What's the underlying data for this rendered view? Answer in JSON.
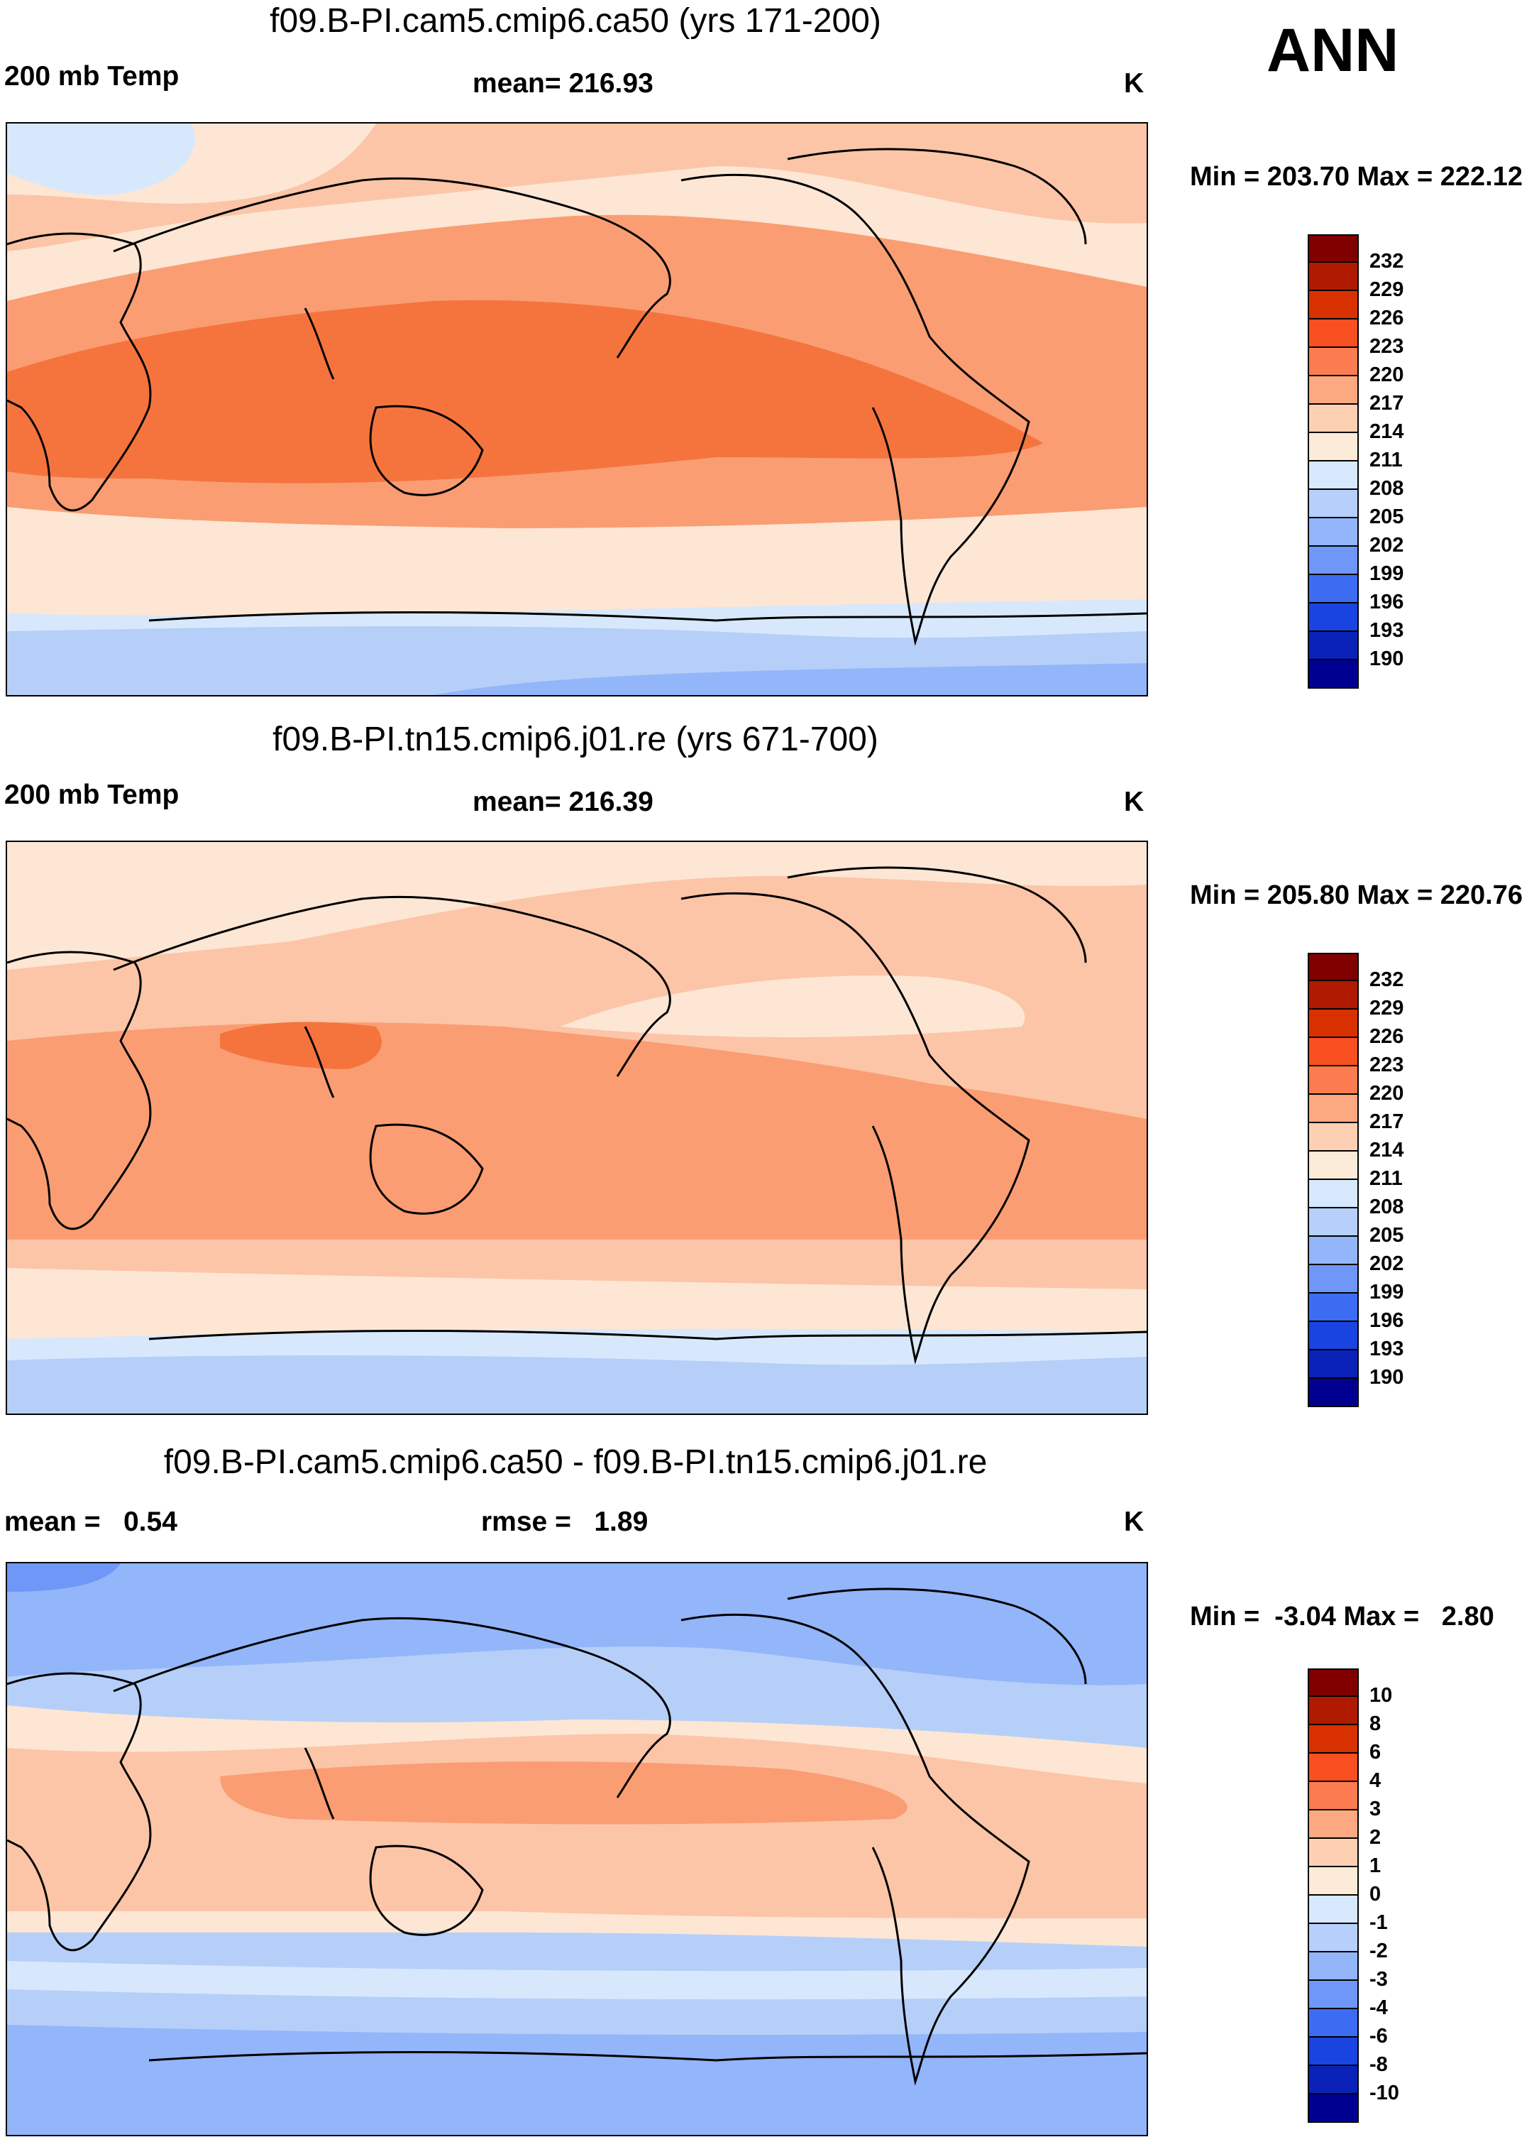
{
  "title_ann": "ANN",
  "panels": [
    {
      "title": "f09.B-PI.cam5.cmip6.ca50 (yrs 171-200)",
      "left_label": "200 mb Temp",
      "center_label": "mean= 216.93",
      "units": "K",
      "minmax": "Min = 203.70 Max = 222.12",
      "colorbar_labels": [
        "232",
        "229",
        "226",
        "223",
        "220",
        "217",
        "214",
        "211",
        "208",
        "205",
        "202",
        "199",
        "196",
        "193",
        "190"
      ]
    },
    {
      "title": "f09.B-PI.tn15.cmip6.j01.re (yrs 671-700)",
      "left_label": "200 mb Temp",
      "center_label": "mean= 216.39",
      "units": "K",
      "minmax": "Min = 205.80 Max = 220.76",
      "colorbar_labels": [
        "232",
        "229",
        "226",
        "223",
        "220",
        "217",
        "214",
        "211",
        "208",
        "205",
        "202",
        "199",
        "196",
        "193",
        "190"
      ]
    },
    {
      "title": "f09.B-PI.cam5.cmip6.ca50 - f09.B-PI.tn15.cmip6.j01.re",
      "left_label": "mean =   0.54",
      "center_label": "rmse =   1.89",
      "units": "K",
      "minmax": "Min =  -3.04 Max =   2.80",
      "colorbar_labels": [
        "10",
        "8",
        "6",
        "4",
        "3",
        "2",
        "1",
        "0",
        "-1",
        "-2",
        "-3",
        "-4",
        "-6",
        "-8",
        "-10"
      ]
    }
  ],
  "colorbar_colors": [
    "#800000",
    "#b01a00",
    "#d93000",
    "#f85020",
    "#fa7c50",
    "#fca880",
    "#fdd0b4",
    "#fdebd9",
    "#d7e9fc",
    "#b6d0fb",
    "#93b5f9",
    "#6f97f7",
    "#3c6cf2",
    "#1a44e0",
    "#0a22b8",
    "#000090"
  ],
  "map_colors": {
    "deep_warm": "#f5743e",
    "warm": "#fa9d73",
    "light_warm": "#fcc5a8",
    "pale_warm": "#fde6d4",
    "pale_cool": "#d8e8fc",
    "light_cool": "#b5cff9",
    "cool": "#93b5f9",
    "deep_cool": "#6f97f7"
  }
}
